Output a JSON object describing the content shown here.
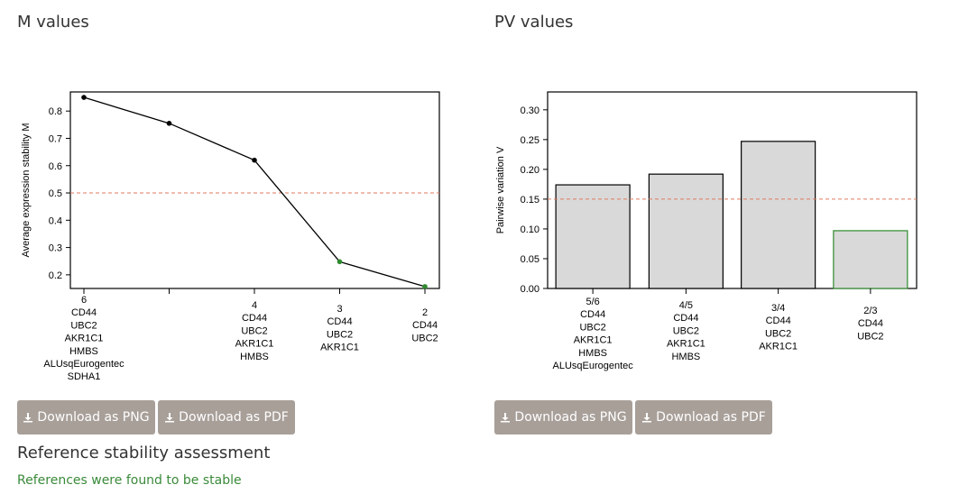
{
  "sections": {
    "m_title": "M values",
    "pv_title": "PV values",
    "stability_title": "Reference stability assessment",
    "stability_status": "References were found to be stable"
  },
  "buttons": {
    "m_png": "Download as PNG",
    "m_pdf": "Download as PDF",
    "pv_png": "Download as PNG",
    "pv_pdf": "Download as PDF"
  },
  "colors": {
    "stable_point": "#2e8b2e",
    "threshold_line": "#e07a5f",
    "bar_fill": "#d9d9d9",
    "bar_stable_border": "#2e8b2e",
    "button_bg": "#a89f99",
    "status_text": "#3a8a3a"
  },
  "chart_data": [
    {
      "type": "line",
      "ylabel": "Average expression stability M",
      "ylim": [
        0.15,
        0.87
      ],
      "yticks": [
        0.2,
        0.3,
        0.4,
        0.5,
        0.6,
        0.7,
        0.8
      ],
      "threshold": 0.5,
      "points": [
        {
          "x_label": "6",
          "genes": [
            "CD44",
            "UBC2",
            "AKR1C1",
            "HMBS",
            "ALUsqEurogentec",
            "SDHA1"
          ],
          "y": 0.85,
          "stable": false
        },
        {
          "x_label": "",
          "genes": [],
          "y": 0.755,
          "stable": false
        },
        {
          "x_label": "4",
          "genes": [
            "CD44",
            "UBC2",
            "AKR1C1",
            "HMBS"
          ],
          "y": 0.62,
          "stable": false
        },
        {
          "x_label": "3",
          "genes": [
            "CD44",
            "UBC2",
            "AKR1C1"
          ],
          "y": 0.248,
          "stable": true
        },
        {
          "x_label": "2",
          "genes": [
            "CD44",
            "UBC2"
          ],
          "y": 0.157,
          "stable": true
        }
      ],
      "grid": false
    },
    {
      "type": "bar",
      "ylabel": "Pairwise variation V",
      "ylim": [
        0,
        0.33
      ],
      "yticks": [
        0.0,
        0.05,
        0.1,
        0.15,
        0.2,
        0.25,
        0.3
      ],
      "ytick_labels": [
        "0.00",
        "0.05",
        "0.10",
        "0.15",
        "0.20",
        "0.25",
        "0.30"
      ],
      "threshold": 0.15,
      "bars": [
        {
          "label": "5/6",
          "genes": [
            "CD44",
            "UBC2",
            "AKR1C1",
            "HMBS",
            "ALUsqEurogentec"
          ],
          "value": 0.174,
          "stable": false
        },
        {
          "label": "4/5",
          "genes": [
            "CD44",
            "UBC2",
            "AKR1C1",
            "HMBS"
          ],
          "value": 0.192,
          "stable": false
        },
        {
          "label": "3/4",
          "genes": [
            "CD44",
            "UBC2",
            "AKR1C1"
          ],
          "value": 0.247,
          "stable": false
        },
        {
          "label": "2/3",
          "genes": [
            "CD44",
            "UBC2"
          ],
          "value": 0.097,
          "stable": true
        }
      ],
      "grid": false
    }
  ]
}
